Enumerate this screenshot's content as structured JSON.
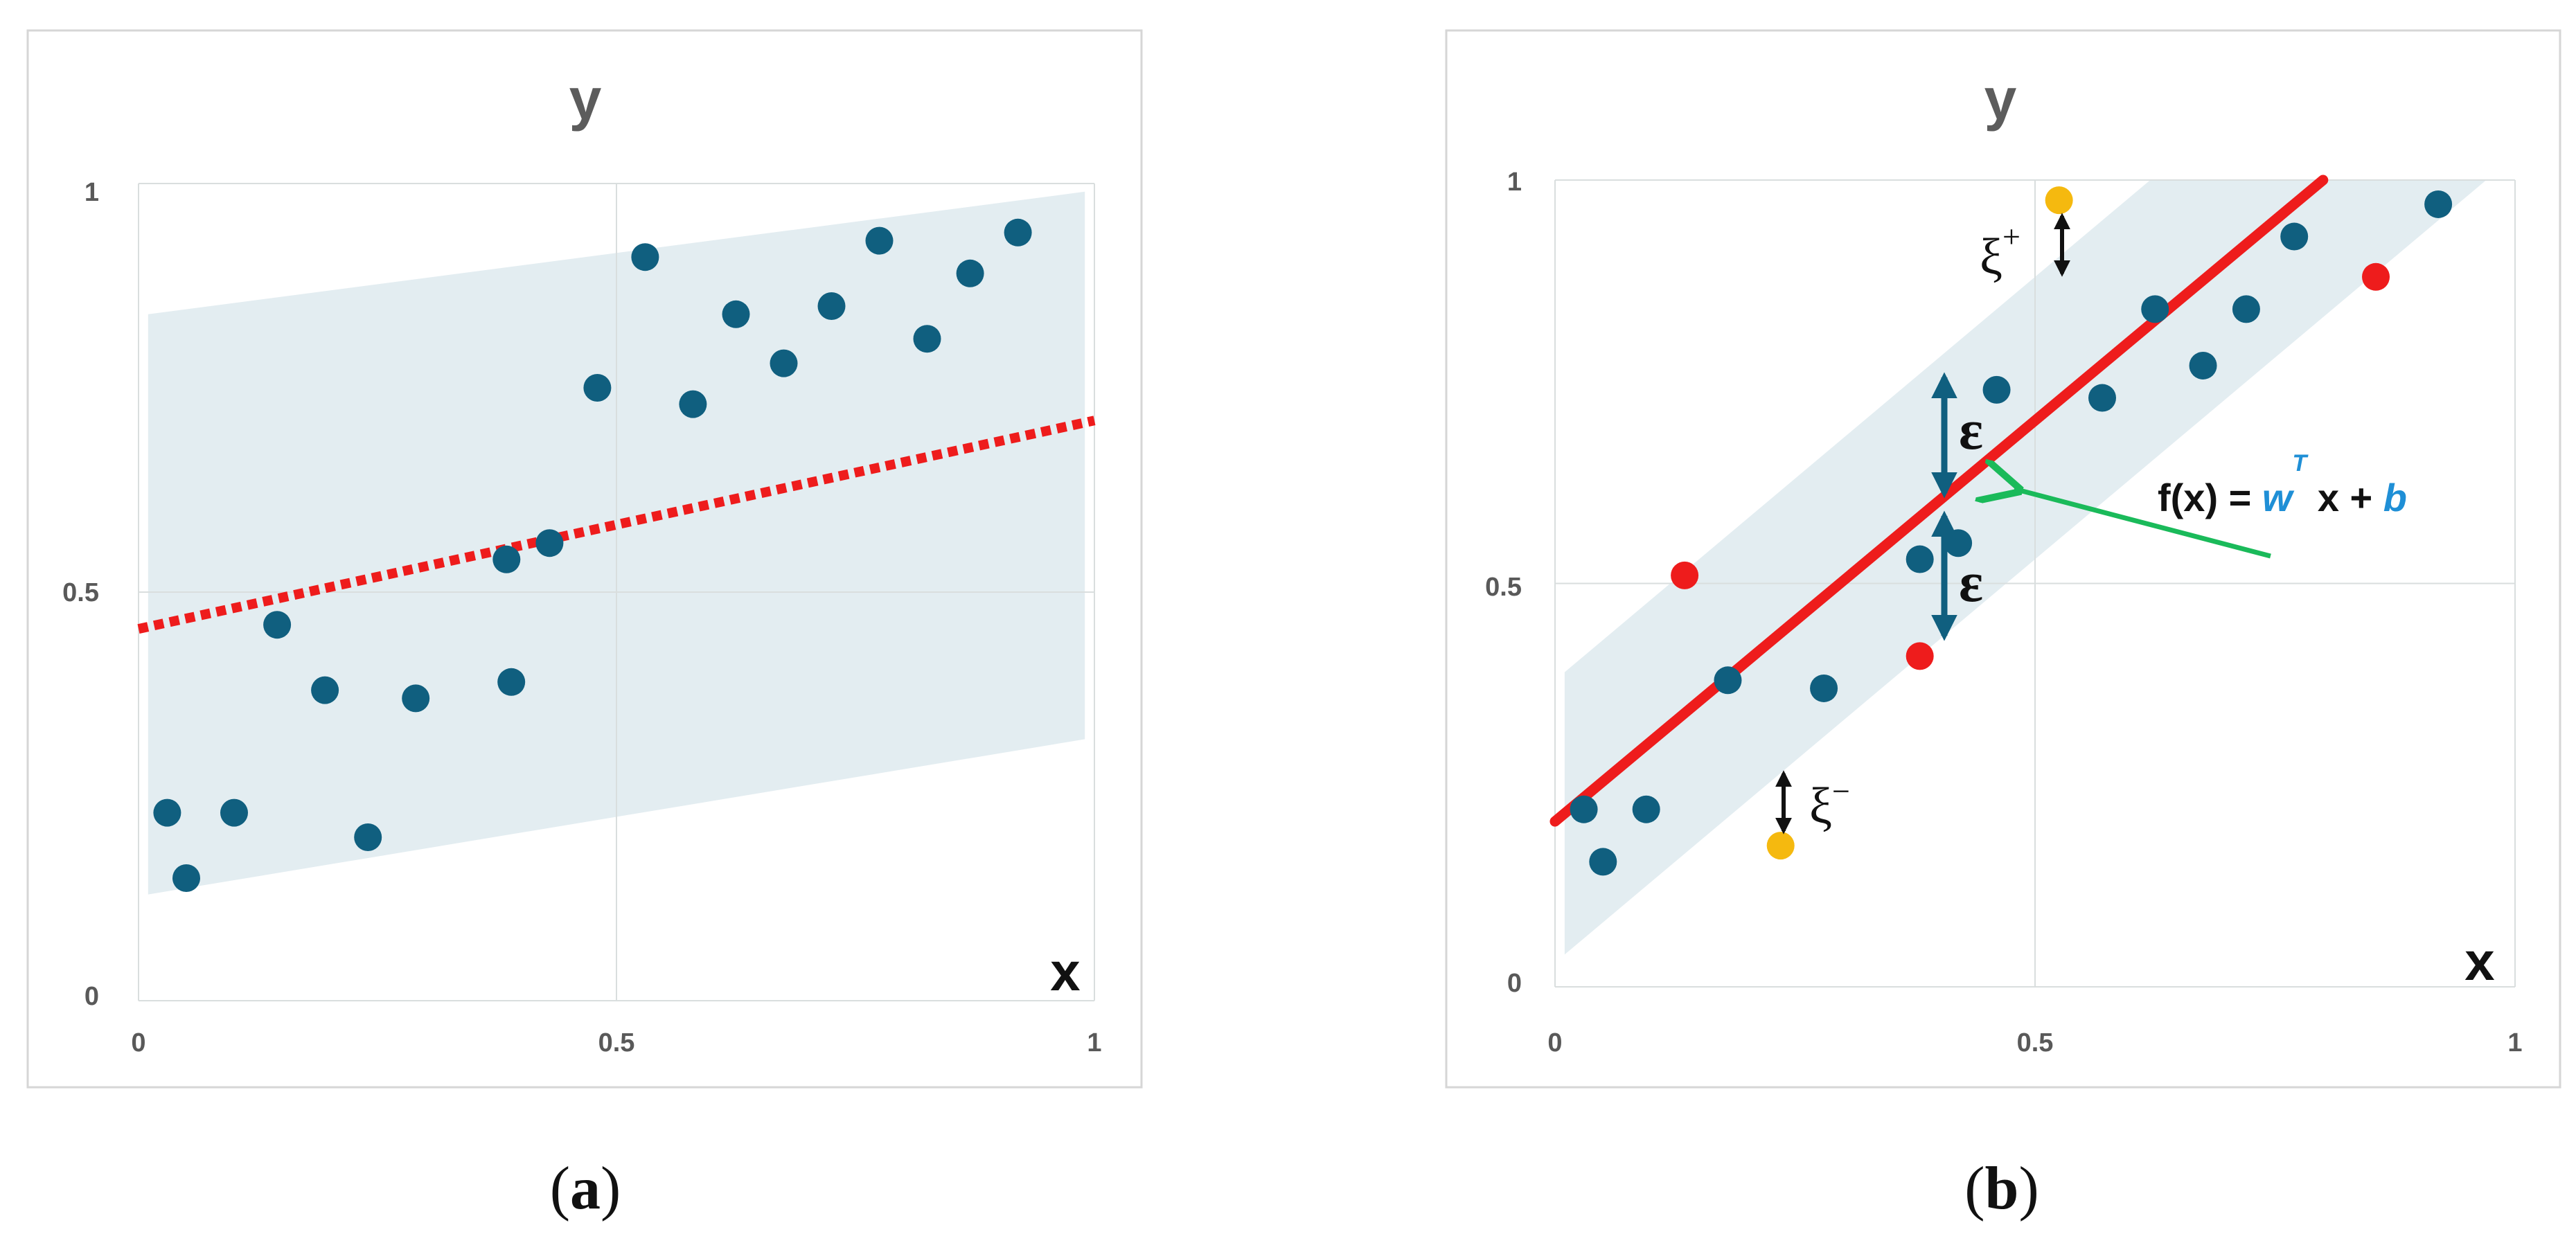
{
  "captions": {
    "a": "a",
    "b": "b",
    "open": "(",
    "close": ")"
  },
  "colors": {
    "point": "#105f7f",
    "band": "#e3edf1",
    "fit_line": "#ee1c1c",
    "outlier_red": "#ee1c1c",
    "outlier_yellow": "#f5b90f",
    "arrow_blue": "#105f7f",
    "arrow_green": "#1aba5a"
  },
  "annotations": {
    "epsilon": "ε",
    "xi_plus": "ξ",
    "xi_plus_sup": "+",
    "xi_minus": "ξ",
    "xi_minus_sup": "−",
    "equation": {
      "f": "f(x) = ",
      "w": "w",
      "T": "T",
      "x": " x + ",
      "b": "b"
    }
  },
  "chart_data": [
    {
      "type": "scatter",
      "panel": "a",
      "xlabel": "x",
      "ylabel": "y",
      "xlim": [
        0,
        1
      ],
      "ylim": [
        0,
        1
      ],
      "x_ticks": [
        "0",
        "0.5",
        "1"
      ],
      "y_ticks": [
        "0",
        "0.5",
        "1"
      ],
      "grid": true,
      "band": {
        "x": [
          0.01,
          0.99
        ],
        "lower": [
          0.13,
          0.32
        ],
        "upper": [
          0.84,
          0.99
        ]
      },
      "fit_line": {
        "style": "dotted",
        "x": [
          0,
          1
        ],
        "y": [
          0.455,
          0.71
        ]
      },
      "points": [
        [
          0.03,
          0.23
        ],
        [
          0.05,
          0.15
        ],
        [
          0.1,
          0.23
        ],
        [
          0.145,
          0.46
        ],
        [
          0.195,
          0.38
        ],
        [
          0.24,
          0.2
        ],
        [
          0.29,
          0.37
        ],
        [
          0.385,
          0.54
        ],
        [
          0.39,
          0.39
        ],
        [
          0.43,
          0.56
        ],
        [
          0.48,
          0.75
        ],
        [
          0.53,
          0.91
        ],
        [
          0.58,
          0.73
        ],
        [
          0.625,
          0.84
        ],
        [
          0.675,
          0.78
        ],
        [
          0.725,
          0.85
        ],
        [
          0.775,
          0.93
        ],
        [
          0.825,
          0.81
        ],
        [
          0.87,
          0.89
        ],
        [
          0.92,
          0.94
        ]
      ]
    },
    {
      "type": "scatter",
      "panel": "b",
      "xlabel": "x",
      "ylabel": "y",
      "xlim": [
        0,
        1
      ],
      "ylim": [
        0,
        1
      ],
      "x_ticks": [
        "0",
        "0.5",
        "1"
      ],
      "y_ticks": [
        "0",
        "0.5",
        "1"
      ],
      "grid": true,
      "band": {
        "lower": [
          [
            0.01,
            0.04
          ],
          [
            0.97,
            1.0
          ]
        ],
        "upper": [
          [
            0.01,
            0.39
          ],
          [
            0.62,
            1.0
          ]
        ]
      },
      "fit_line": {
        "style": "solid",
        "x": [
          0,
          0.8
        ],
        "y": [
          0.205,
          1.0
        ]
      },
      "points": [
        [
          0.03,
          0.22
        ],
        [
          0.05,
          0.155
        ],
        [
          0.095,
          0.22
        ],
        [
          0.18,
          0.38
        ],
        [
          0.28,
          0.37
        ],
        [
          0.38,
          0.53
        ],
        [
          0.42,
          0.55
        ],
        [
          0.46,
          0.74
        ],
        [
          0.57,
          0.73
        ],
        [
          0.625,
          0.84
        ],
        [
          0.675,
          0.77
        ],
        [
          0.72,
          0.84
        ],
        [
          0.77,
          0.93
        ],
        [
          0.92,
          0.97
        ]
      ],
      "outliers_red": [
        [
          0.135,
          0.51
        ],
        [
          0.38,
          0.41
        ],
        [
          0.855,
          0.88
        ]
      ],
      "outliers_yellow": [
        [
          0.525,
          0.975
        ],
        [
          0.235,
          0.175
        ]
      ]
    }
  ]
}
